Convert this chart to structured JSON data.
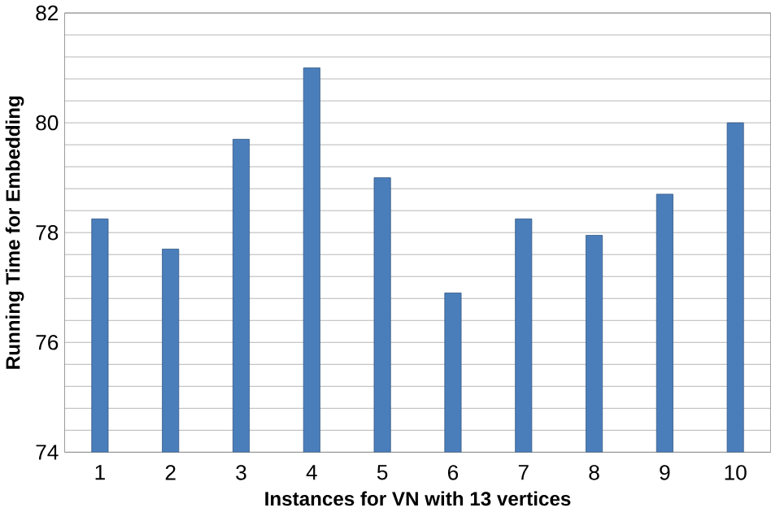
{
  "chart_data": {
    "type": "bar",
    "xlabel": "Instances for VN with  13 vertices",
    "ylabel": "Running Time for Embedding",
    "categories": [
      "1",
      "2",
      "3",
      "4",
      "5",
      "6",
      "7",
      "8",
      "9",
      "10"
    ],
    "values": [
      78.25,
      77.7,
      79.7,
      81.0,
      79.0,
      76.9,
      78.25,
      77.95,
      78.7,
      80.0
    ],
    "color": "#4a7ebb",
    "ylim": [
      74,
      82
    ],
    "yticks": [
      74,
      {
        "value": 74.4,
        "label": null
      },
      {
        "value": 74.8,
        "label": null
      },
      {
        "value": 75.2,
        "label": null
      },
      {
        "value": 75.6,
        "label": null
      },
      76,
      {
        "value": 76.4,
        "label": null
      },
      {
        "value": 76.8,
        "label": null
      },
      {
        "value": 77.2,
        "label": null
      },
      {
        "value": 77.6,
        "label": null
      },
      78,
      {
        "value": 78.4,
        "label": null
      },
      {
        "value": 78.8,
        "label": null
      },
      {
        "value": 79.2,
        "label": null
      },
      {
        "value": 79.6,
        "label": null
      },
      80,
      {
        "value": 80.4,
        "label": null
      },
      {
        "value": 80.8,
        "label": null
      },
      {
        "value": 81.2,
        "label": null
      },
      {
        "value": 81.6,
        "label": null
      },
      82
    ],
    "grid": "y"
  }
}
